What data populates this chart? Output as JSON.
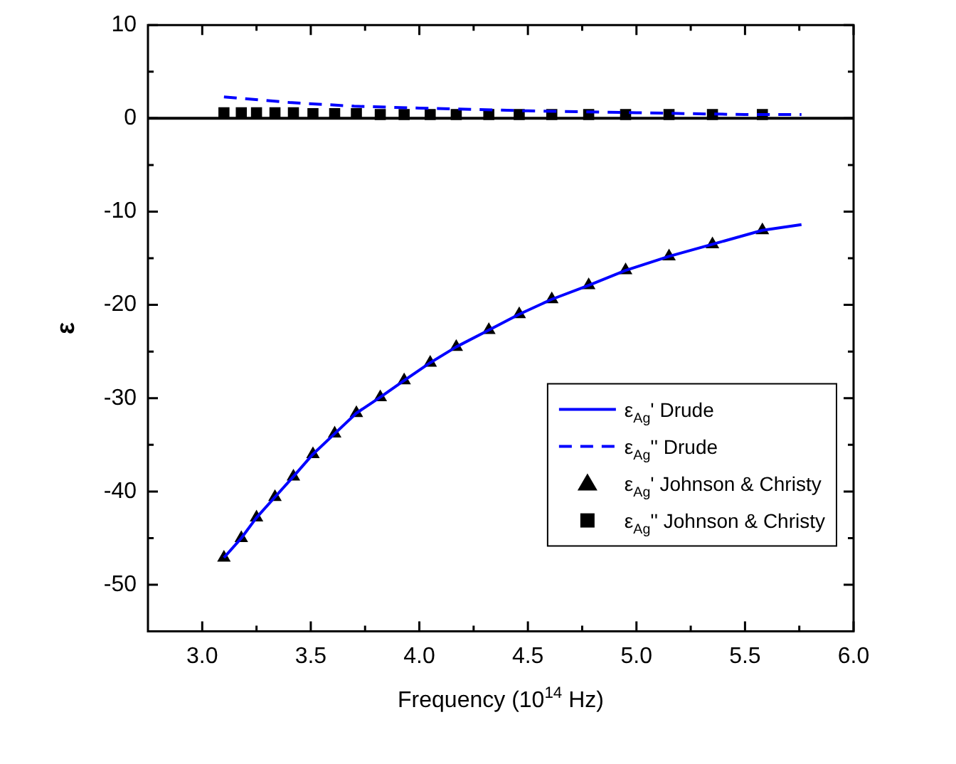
{
  "chart_data": {
    "type": "line",
    "xlabel": "Frequency (10$^{14}$ Hz)",
    "ylabel": "ε",
    "xlim": [
      2.75,
      6.0
    ],
    "xticks": [
      {
        "value": 3.0,
        "label": "3.0"
      },
      {
        "value": 3.5,
        "label": "3.5"
      },
      {
        "value": 4.0,
        "label": "4.0"
      },
      {
        "value": 4.5,
        "label": "4.5"
      },
      {
        "value": 5.0,
        "label": "5.0"
      },
      {
        "value": 5.5,
        "label": "5.5"
      },
      {
        "value": 6.0,
        "label": "6.0"
      }
    ],
    "ylim": [
      -55,
      10
    ],
    "yticks": [
      -50,
      -40,
      -30,
      -20,
      -10,
      0,
      10
    ],
    "grid": false,
    "legend": "bottom right",
    "ref_lines": [
      {
        "axis": "y",
        "value": 0,
        "color": "#000000",
        "line_style": "solid"
      }
    ],
    "series": [
      {
        "name": "ε$_{Ag}$' Drude",
        "color": "#0000ff",
        "marker": "none",
        "line_style": "solid",
        "x": [
          3.1,
          3.18,
          3.25,
          3.335,
          3.42,
          3.51,
          3.61,
          3.71,
          3.82,
          3.93,
          4.05,
          4.17,
          4.32,
          4.46,
          4.61,
          4.78,
          4.95,
          5.15,
          5.35,
          5.58,
          5.76
        ],
        "values": [
          -47.1,
          -45.0,
          -42.8,
          -40.6,
          -38.4,
          -36.0,
          -33.8,
          -31.6,
          -29.9,
          -28.1,
          -26.2,
          -24.5,
          -22.7,
          -21.0,
          -19.4,
          -17.9,
          -16.3,
          -14.8,
          -13.5,
          -12.0,
          -11.4
        ]
      },
      {
        "name": "ε$_{Ag}$'' Drude",
        "color": "#0000ff",
        "marker": "none",
        "line_style": "dashed",
        "x": [
          3.1,
          3.4,
          3.7,
          4.0,
          4.5,
          5.0,
          5.5,
          5.76
        ],
        "values": [
          2.3,
          1.7,
          1.3,
          1.1,
          0.8,
          0.6,
          0.4,
          0.4
        ]
      },
      {
        "name": "ε$_{Ag}$' Johnson & Christy",
        "type": "scatter",
        "color": "#000000",
        "marker": "triangle",
        "x": [
          3.1,
          3.18,
          3.25,
          3.335,
          3.42,
          3.51,
          3.61,
          3.71,
          3.82,
          3.93,
          4.05,
          4.17,
          4.32,
          4.46,
          4.61,
          4.78,
          4.95,
          5.15,
          5.35,
          5.58
        ],
        "values": [
          -47.1,
          -45.0,
          -42.8,
          -40.6,
          -38.4,
          -36.0,
          -33.8,
          -31.6,
          -29.9,
          -28.1,
          -26.2,
          -24.5,
          -22.7,
          -21.0,
          -19.4,
          -17.9,
          -16.3,
          -14.8,
          -13.5,
          -12.0
        ]
      },
      {
        "name": "ε$_{Ag}$'' Johnson & Christy",
        "type": "scatter",
        "color": "#000000",
        "marker": "square",
        "x": [
          3.1,
          3.18,
          3.25,
          3.335,
          3.42,
          3.51,
          3.61,
          3.71,
          3.82,
          3.93,
          4.05,
          4.17,
          4.32,
          4.46,
          4.61,
          4.78,
          4.95,
          5.15,
          5.35,
          5.58
        ],
        "values": [
          0.6,
          0.6,
          0.6,
          0.6,
          0.6,
          0.5,
          0.5,
          0.5,
          0.4,
          0.4,
          0.4,
          0.4,
          0.4,
          0.4,
          0.4,
          0.4,
          0.4,
          0.4,
          0.4,
          0.4
        ]
      }
    ]
  }
}
